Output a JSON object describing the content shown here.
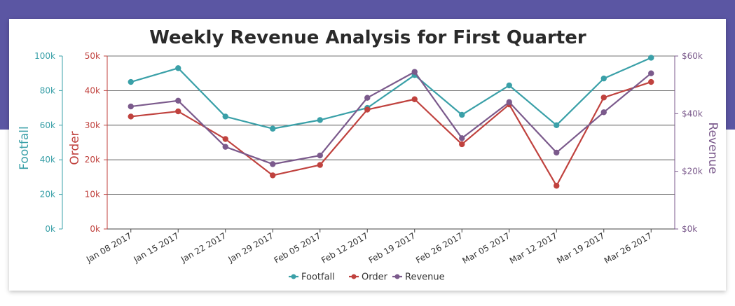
{
  "colors": {
    "band": "#5b56a3",
    "footfall": "#3aa0a8",
    "order": "#c0423e",
    "revenue": "#7b5a8c",
    "grid": "#444444"
  },
  "chart_data": {
    "type": "line",
    "title": "Weekly Revenue Analysis for First Quarter",
    "categories": [
      "Jan 08 2017",
      "Jan 15 2017",
      "Jan 22 2017",
      "Jan 29 2017",
      "Feb 05 2017",
      "Feb 12 2017",
      "Feb 19 2017",
      "Feb 26 2017",
      "Mar 05 2017",
      "Mar 12 2017",
      "Mar 19 2017",
      "Mar 26 2017"
    ],
    "axes": [
      {
        "id": "footfall",
        "title": "Footfall",
        "range": [
          0,
          100000
        ],
        "ticks": [
          "0k",
          "20k",
          "40k",
          "60k",
          "80k",
          "100k"
        ],
        "tick_values": [
          0,
          20000,
          40000,
          60000,
          80000,
          100000
        ]
      },
      {
        "id": "order",
        "title": "Order",
        "range": [
          0,
          50000
        ],
        "ticks": [
          "0k",
          "10k",
          "20k",
          "30k",
          "40k",
          "50k"
        ],
        "tick_values": [
          0,
          10000,
          20000,
          30000,
          40000,
          50000
        ]
      },
      {
        "id": "revenue",
        "title": "Revenue",
        "range": [
          0,
          60000
        ],
        "ticks": [
          "$0k",
          "$20k",
          "$40k",
          "$60k"
        ],
        "tick_values": [
          0,
          20000,
          40000,
          60000
        ]
      }
    ],
    "series": [
      {
        "name": "Footfall",
        "axis": "footfall",
        "values": [
          85000,
          93000,
          65000,
          58000,
          63000,
          70000,
          89000,
          66000,
          83000,
          60000,
          87000,
          99000
        ]
      },
      {
        "name": "Order",
        "axis": "order",
        "values": [
          32500,
          34000,
          26000,
          15500,
          18500,
          34500,
          37500,
          24500,
          36000,
          12500,
          38000,
          42500
        ]
      },
      {
        "name": "Revenue",
        "axis": "revenue",
        "values": [
          42500,
          44500,
          28500,
          22500,
          25500,
          45500,
          54500,
          31500,
          44000,
          26500,
          40500,
          54000
        ]
      }
    ],
    "grid": true,
    "legend": "bottom-center"
  }
}
